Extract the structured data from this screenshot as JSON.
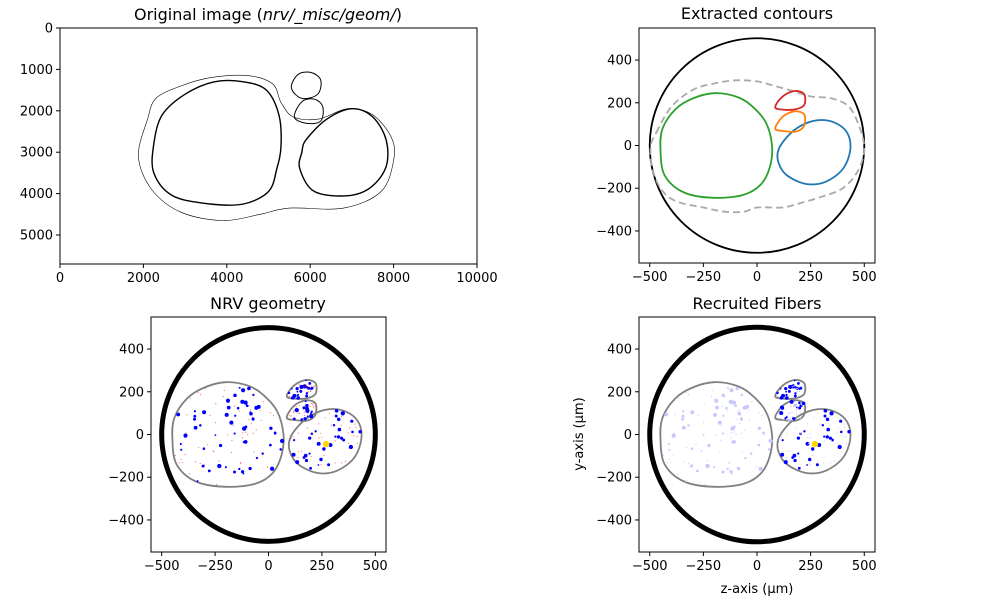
{
  "chart_data": [
    {
      "type": "image",
      "title": "Original image (nrv/_misc/geom/)",
      "title_parts": [
        "Original image (",
        "nrv/_misc/geom/",
        ")"
      ],
      "x": {
        "range": [
          0,
          10000
        ],
        "ticks": [
          0,
          2000,
          4000,
          6000,
          8000,
          10000
        ],
        "tick_labels": [
          "0",
          "2000",
          "4000",
          "6000",
          "8000",
          "10000"
        ]
      },
      "y": {
        "range": [
          5700,
          0
        ],
        "ticks": [
          0,
          1000,
          2000,
          3000,
          4000,
          5000
        ],
        "tick_labels": [
          "0",
          "1000",
          "2000",
          "3000",
          "4000",
          "5000"
        ]
      },
      "contours": [
        {
          "name": "outline",
          "color": "#000000",
          "width": 0.6,
          "points": [
            [
              2300,
              1700
            ],
            [
              2900,
              1400
            ],
            [
              3600,
              1200
            ],
            [
              4500,
              1150
            ],
            [
              5100,
              1350
            ],
            [
              5300,
              1800
            ],
            [
              5600,
              2150
            ],
            [
              6200,
              2200
            ],
            [
              6900,
              1950
            ],
            [
              7500,
              2100
            ],
            [
              7950,
              2650
            ],
            [
              8000,
              3200
            ],
            [
              7700,
              3950
            ],
            [
              6800,
              4350
            ],
            [
              5500,
              4350
            ],
            [
              4800,
              4500
            ],
            [
              3900,
              4650
            ],
            [
              2900,
              4450
            ],
            [
              2200,
              3900
            ],
            [
              1880,
              3100
            ],
            [
              2100,
              2200
            ]
          ]
        },
        {
          "name": "left-fascicle",
          "color": "#000000",
          "width": 1.4,
          "points": [
            [
              2450,
              2100
            ],
            [
              3000,
              1600
            ],
            [
              3700,
              1300
            ],
            [
              4400,
              1300
            ],
            [
              4950,
              1500
            ],
            [
              5250,
              2100
            ],
            [
              5300,
              2850
            ],
            [
              5200,
              3400
            ],
            [
              5000,
              3950
            ],
            [
              4400,
              4250
            ],
            [
              3600,
              4250
            ],
            [
              2700,
              4050
            ],
            [
              2250,
              3500
            ],
            [
              2250,
              2800
            ]
          ]
        },
        {
          "name": "right-fascicle",
          "color": "#000000",
          "width": 1.4,
          "points": [
            [
              5900,
              2700
            ],
            [
              6400,
              2200
            ],
            [
              7000,
              1950
            ],
            [
              7500,
              2150
            ],
            [
              7820,
              2700
            ],
            [
              7820,
              3350
            ],
            [
              7450,
              3850
            ],
            [
              6900,
              4050
            ],
            [
              6100,
              3950
            ],
            [
              5750,
              3400
            ],
            [
              5800,
              3000
            ]
          ]
        },
        {
          "name": "small-upper",
          "color": "#000000",
          "width": 1.0,
          "points": [
            [
              5550,
              1450
            ],
            [
              5700,
              1130
            ],
            [
              6000,
              1070
            ],
            [
              6250,
              1250
            ],
            [
              6180,
              1600
            ],
            [
              5800,
              1700
            ]
          ]
        },
        {
          "name": "small-lower",
          "color": "#000000",
          "width": 1.0,
          "points": [
            [
              5620,
              2150
            ],
            [
              5800,
              1780
            ],
            [
              6100,
              1720
            ],
            [
              6300,
              1900
            ],
            [
              6250,
              2250
            ],
            [
              5900,
              2300
            ]
          ]
        }
      ]
    },
    {
      "type": "line",
      "title": "Extracted contours",
      "x": {
        "range": [
          -550,
          550
        ],
        "ticks": [
          -500,
          -250,
          0,
          250,
          500
        ],
        "tick_labels": [
          "−500",
          "−250",
          "0",
          "250",
          "500"
        ]
      },
      "y": {
        "range": [
          -550,
          550
        ],
        "ticks": [
          -400,
          -200,
          0,
          200,
          400
        ],
        "tick_labels": [
          "−400",
          "−200",
          "0",
          "200",
          "400"
        ]
      },
      "circle": {
        "center": [
          0,
          0
        ],
        "radius": 500,
        "color": "#000000",
        "width": 1.8
      },
      "series": [
        {
          "color": "#aaaaaa",
          "dashed": true,
          "width": 1.8,
          "points": [
            [
              -470,
              60
            ],
            [
              -400,
              180
            ],
            [
              -300,
              260
            ],
            [
              -200,
              290
            ],
            [
              -100,
              305
            ],
            [
              0,
              300
            ],
            [
              60,
              285
            ],
            [
              150,
              260
            ],
            [
              250,
              230
            ],
            [
              350,
              220
            ],
            [
              430,
              180
            ],
            [
              480,
              80
            ],
            [
              500,
              -20
            ],
            [
              470,
              -120
            ],
            [
              400,
              -200
            ],
            [
              300,
              -240
            ],
            [
              200,
              -270
            ],
            [
              120,
              -290
            ],
            [
              0,
              -290
            ],
            [
              -60,
              -310
            ],
            [
              -150,
              -310
            ],
            [
              -250,
              -290
            ],
            [
              -380,
              -260
            ],
            [
              -450,
              -200
            ],
            [
              -490,
              -100
            ],
            [
              -495,
              0
            ]
          ]
        },
        {
          "color": "#2ca02c",
          "points": [
            [
              -440,
              80
            ],
            [
              -380,
              170
            ],
            [
              -300,
              220
            ],
            [
              -200,
              245
            ],
            [
              -100,
              230
            ],
            [
              -30,
              190
            ],
            [
              40,
              110
            ],
            [
              70,
              0
            ],
            [
              60,
              -100
            ],
            [
              20,
              -180
            ],
            [
              -60,
              -230
            ],
            [
              -200,
              -245
            ],
            [
              -340,
              -220
            ],
            [
              -430,
              -140
            ],
            [
              -450,
              -20
            ]
          ]
        },
        {
          "color": "#1f77b4",
          "points": [
            [
              100,
              -20
            ],
            [
              140,
              40
            ],
            [
              200,
              90
            ],
            [
              280,
              118
            ],
            [
              360,
              108
            ],
            [
              420,
              60
            ],
            [
              435,
              -20
            ],
            [
              400,
              -110
            ],
            [
              320,
              -170
            ],
            [
              230,
              -180
            ],
            [
              140,
              -140
            ],
            [
              100,
              -80
            ]
          ]
        },
        {
          "color": "#d62728",
          "points": [
            [
              85,
              180
            ],
            [
              120,
              230
            ],
            [
              175,
              255
            ],
            [
              220,
              240
            ],
            [
              220,
              190
            ],
            [
              180,
              170
            ],
            [
              120,
              168
            ]
          ]
        },
        {
          "color": "#ff7f0e",
          "points": [
            [
              85,
              80
            ],
            [
              120,
              135
            ],
            [
              175,
              160
            ],
            [
              220,
              145
            ],
            [
              218,
              90
            ],
            [
              180,
              65
            ],
            [
              120,
              68
            ]
          ]
        }
      ]
    },
    {
      "type": "scatter",
      "title": "NRV geometry",
      "x": {
        "range": [
          -550,
          550
        ],
        "ticks": [
          -500,
          -250,
          0,
          250,
          500
        ],
        "tick_labels": [
          "−500",
          "−250",
          "0",
          "250",
          "500"
        ]
      },
      "y": {
        "range": [
          -550,
          550
        ],
        "ticks": [
          -400,
          -200,
          0,
          200,
          400
        ],
        "tick_labels": [
          "−400",
          "−200",
          "0",
          "200",
          "400"
        ]
      },
      "circle": {
        "center": [
          0,
          0
        ],
        "radius": 500,
        "color": "#000000",
        "width": 5
      },
      "fascicle_color": "#808080",
      "axon_colors": {
        "myelinated": "#0000ff",
        "unmyelinated": "#ff0000",
        "electrode": "#ffd700"
      },
      "electrode": [
        270,
        -45
      ],
      "fiber_alpha": 1.0
    },
    {
      "type": "scatter",
      "title": "Recruited Fibers",
      "xlabel": "z-axis (μm)",
      "ylabel": "y-axis (μm)",
      "x": {
        "range": [
          -550,
          550
        ],
        "ticks": [
          -500,
          -250,
          0,
          250,
          500
        ],
        "tick_labels": [
          "−500",
          "−250",
          "0",
          "250",
          "500"
        ]
      },
      "y": {
        "range": [
          -550,
          550
        ],
        "ticks": [
          -400,
          -200,
          0,
          200,
          400
        ],
        "tick_labels": [
          "−400",
          "−200",
          "0",
          "200",
          "400"
        ]
      },
      "circle": {
        "center": [
          0,
          0
        ],
        "radius": 500,
        "color": "#000000",
        "width": 5
      },
      "fascicle_color": "#808080",
      "axon_colors": {
        "recruited": "#0000ff",
        "not_recruited": "#c8c8ff",
        "electrode": "#ffd700"
      },
      "electrode": [
        270,
        -45
      ],
      "fiber_alpha": 0.2
    }
  ]
}
